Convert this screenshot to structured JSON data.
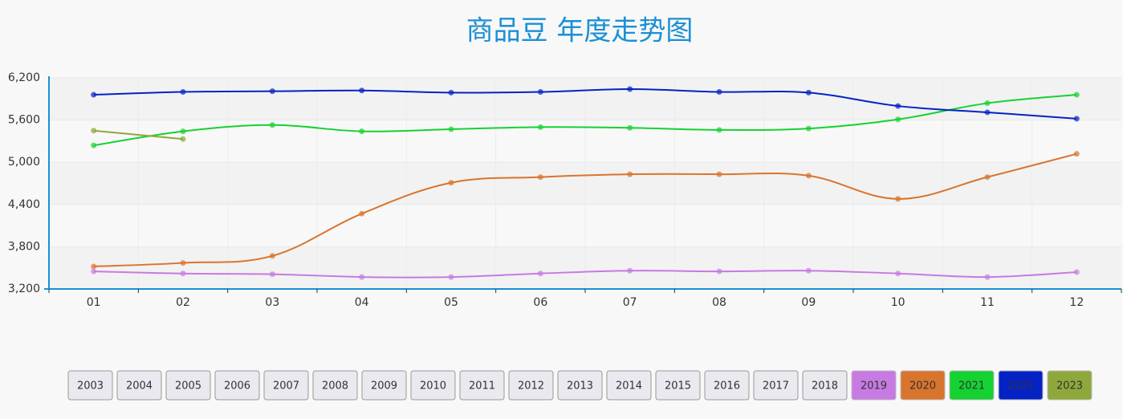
{
  "chart_data": {
    "type": "line",
    "title": "商品豆 年度走势图",
    "categories": [
      "01",
      "02",
      "03",
      "04",
      "05",
      "06",
      "07",
      "08",
      "09",
      "10",
      "11",
      "12"
    ],
    "ylim": [
      3200,
      6200
    ],
    "yticks": [
      {
        "value": 3200,
        "label": "3,200"
      },
      {
        "value": 3800,
        "label": "3,800"
      },
      {
        "value": 4400,
        "label": "4,400"
      },
      {
        "value": 5000,
        "label": "5,000"
      },
      {
        "value": 5600,
        "label": "5,600"
      },
      {
        "value": 6200,
        "label": "6,200"
      }
    ],
    "grid": true,
    "series": [
      {
        "name": "2003",
        "values": [
          null,
          null,
          null,
          null,
          null,
          null,
          null,
          null,
          null,
          null,
          null,
          null
        ]
      },
      {
        "name": "2004",
        "values": [
          null,
          null,
          null,
          null,
          null,
          null,
          null,
          null,
          null,
          null,
          null,
          null
        ]
      },
      {
        "name": "2005",
        "values": [
          null,
          null,
          null,
          null,
          null,
          null,
          null,
          null,
          null,
          null,
          null,
          null
        ]
      },
      {
        "name": "2006",
        "values": [
          null,
          null,
          null,
          null,
          null,
          null,
          null,
          null,
          null,
          null,
          null,
          null
        ]
      },
      {
        "name": "2007",
        "values": [
          null,
          null,
          null,
          null,
          null,
          null,
          null,
          null,
          null,
          null,
          null,
          null
        ]
      },
      {
        "name": "2008",
        "values": [
          null,
          null,
          null,
          null,
          null,
          null,
          null,
          null,
          null,
          null,
          null,
          null
        ]
      },
      {
        "name": "2009",
        "values": [
          null,
          null,
          null,
          null,
          null,
          null,
          null,
          null,
          null,
          null,
          null,
          null
        ]
      },
      {
        "name": "2010",
        "values": [
          null,
          null,
          null,
          null,
          null,
          null,
          null,
          null,
          null,
          null,
          null,
          null
        ]
      },
      {
        "name": "2011",
        "values": [
          null,
          null,
          null,
          null,
          null,
          null,
          null,
          null,
          null,
          null,
          null,
          null
        ]
      },
      {
        "name": "2012",
        "values": [
          null,
          null,
          null,
          null,
          null,
          null,
          null,
          null,
          null,
          null,
          null,
          null
        ]
      },
      {
        "name": "2013",
        "values": [
          null,
          null,
          null,
          null,
          null,
          null,
          null,
          null,
          null,
          null,
          null,
          null
        ]
      },
      {
        "name": "2014",
        "values": [
          null,
          null,
          null,
          null,
          null,
          null,
          null,
          null,
          null,
          null,
          null,
          null
        ]
      },
      {
        "name": "2015",
        "values": [
          null,
          null,
          null,
          null,
          null,
          null,
          null,
          null,
          null,
          null,
          null,
          null
        ]
      },
      {
        "name": "2016",
        "values": [
          null,
          null,
          null,
          null,
          null,
          null,
          null,
          null,
          null,
          null,
          null,
          null
        ]
      },
      {
        "name": "2017",
        "values": [
          null,
          null,
          null,
          null,
          null,
          null,
          null,
          null,
          null,
          null,
          null,
          null
        ]
      },
      {
        "name": "2018",
        "values": [
          null,
          null,
          null,
          null,
          null,
          null,
          null,
          null,
          null,
          null,
          null,
          null
        ]
      },
      {
        "name": "2019",
        "color": "#c77ae2",
        "values": [
          3450,
          3420,
          3410,
          3370,
          3370,
          3420,
          3460,
          3450,
          3460,
          3420,
          3370,
          3440
        ]
      },
      {
        "name": "2020",
        "color": "#d9742e",
        "values": [
          3520,
          3570,
          3670,
          4270,
          4710,
          4790,
          4830,
          4830,
          4810,
          4480,
          4790,
          5120
        ]
      },
      {
        "name": "2021",
        "color": "#14d232",
        "values": [
          5240,
          5440,
          5530,
          5440,
          5470,
          5500,
          5490,
          5460,
          5480,
          5610,
          5840,
          5960
        ]
      },
      {
        "name": "2022",
        "color": "#0522c6",
        "values": [
          5960,
          6000,
          6010,
          6020,
          5990,
          6000,
          6040,
          6000,
          5990,
          5800,
          5710,
          5620
        ]
      },
      {
        "name": "2023",
        "color": "#8fa83c",
        "values": [
          5450,
          5330,
          null,
          null,
          null,
          null,
          null,
          null,
          null,
          null,
          null,
          null
        ]
      }
    ]
  }
}
